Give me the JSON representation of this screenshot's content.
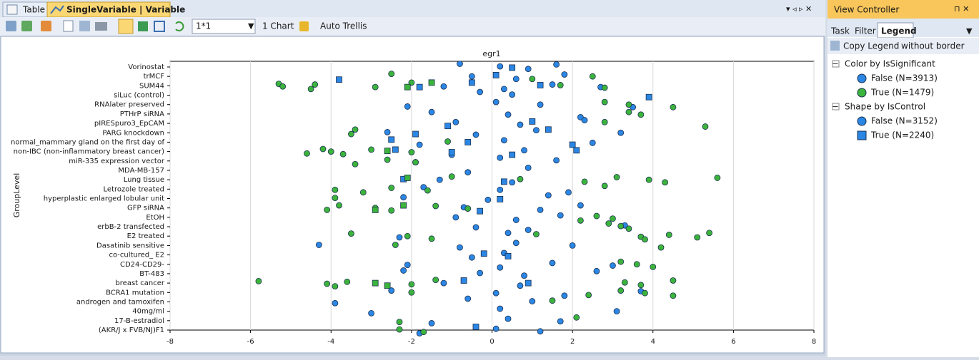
{
  "tabs": [
    "Table",
    "SingleVariable | Variable"
  ],
  "toolbar": {
    "layout": "1*1",
    "charts": "1 Chart",
    "trellis": "Auto Trellis"
  },
  "view_controller": {
    "title": "View Controller",
    "tabs": [
      "Task",
      "Filter",
      "Legend"
    ],
    "copy": "Copy Legend",
    "border": "without border",
    "color_legend": {
      "title": "Color by IsSignificant",
      "items": [
        {
          "label": "False (N=3913)",
          "color": "#2b86e4"
        },
        {
          "label": "True (N=1479)",
          "color": "#3cb43c"
        }
      ]
    },
    "shape_legend": {
      "title": "Shape by IsControl",
      "items": [
        {
          "label": "False (N=3152)",
          "shape": "circle"
        },
        {
          "label": "True (N=2240)",
          "shape": "square"
        }
      ]
    }
  },
  "chart_data": {
    "type": "scatter",
    "title": "egr1",
    "y_label": "GroupLevel",
    "categories": [
      "Vorinostat",
      "trMCF",
      "SUM44",
      "siLuc (control)",
      "RNAlater preserved",
      "PTHrP siRNA",
      "pIRESpuro3_EpCAM",
      "PARG knockdown",
      "normal_mammary gland on the first day of",
      "non-IBC (non-inflammatory breast cancer)",
      "miR-335 expression vector",
      "MDA-MB-157",
      "Lung tissue",
      "Letrozole treated",
      "hyperplastic enlarged lobular unit",
      "GFP siRNA",
      "EtOH",
      "erbB-2 transfected",
      "E2 treated",
      "Dasatinib sensitive",
      "co-cultured_ E2",
      "CD24-CD29-",
      "BT-483",
      "breast cancer",
      "BCRA1 mutation",
      "androgen and tamoxifen",
      "40mg/ml",
      "17-B-estradiol",
      "(AKR/J x FVB/NJ)F1"
    ],
    "xlim": [
      -8,
      8
    ],
    "xticks": [
      -8,
      -6,
      -4,
      -2,
      0,
      2,
      4,
      6,
      8
    ],
    "grid": true,
    "series": [
      {
        "color": "#2b86e4",
        "shape": "circle",
        "x": [
          -0.8,
          0.2,
          0.9,
          1.6,
          -0.5,
          0.6,
          1.8,
          -1.2,
          0.3,
          1.5,
          2.7,
          -0.3,
          0.5,
          -2.1,
          0.1,
          1.2,
          3.5,
          -1.5,
          0.4,
          2.2,
          -0.9,
          0.7,
          2.3,
          -2.6,
          -0.4,
          1.1,
          3.2,
          -1.8,
          0.3,
          2.5,
          -1.0,
          0.8,
          -1.9,
          0.2,
          1.6,
          -0.6,
          0.9,
          -1.3,
          0.5,
          -1.7,
          0.2,
          1.9,
          -2.2,
          -0.1,
          1.4,
          -0.7,
          1.2,
          2.2,
          -0.9,
          0.6,
          1.7,
          -0.4,
          0.9,
          3.3,
          -2.3,
          0.4,
          -4.3,
          -0.8,
          0.6,
          2.0,
          -0.5,
          0.3,
          -2.1,
          0.2,
          1.5,
          3.0,
          -2.2,
          -0.3,
          0.8,
          2.6,
          -1.2,
          0.7,
          -2.5,
          0.1,
          1.8,
          3.7,
          -3.9,
          -0.6,
          1.0,
          -3.0,
          0.2,
          3.1,
          -1.5,
          0.4,
          1.7,
          -1.8,
          0.1,
          1.2
        ],
        "y": [
          "Vorinostat",
          "Vorinostat",
          "Vorinostat",
          "Vorinostat",
          "trMCF",
          "trMCF",
          "trMCF",
          "SUM44",
          "SUM44",
          "SUM44",
          "SUM44",
          "siLuc (control)",
          "siLuc (control)",
          "RNAlater preserved",
          "RNAlater preserved",
          "RNAlater preserved",
          "RNAlater preserved",
          "PTHrP siRNA",
          "PTHrP siRNA",
          "PTHrP siRNA",
          "pIRESpuro3_EpCAM",
          "pIRESpuro3_EpCAM",
          "pIRESpuro3_EpCAM",
          "PARG knockdown",
          "PARG knockdown",
          "PARG knockdown",
          "PARG knockdown",
          "normal_mammary gland on the first day of",
          "normal_mammary gland on the first day of",
          "normal_mammary gland on the first day of",
          "non-IBC (non-inflammatory breast cancer)",
          "non-IBC (non-inflammatory breast cancer)",
          "miR-335 expression vector",
          "miR-335 expression vector",
          "miR-335 expression vector",
          "MDA-MB-157",
          "MDA-MB-157",
          "Lung tissue",
          "Lung tissue",
          "Letrozole treated",
          "Letrozole treated",
          "Letrozole treated",
          "hyperplastic enlarged lobular unit",
          "hyperplastic enlarged lobular unit",
          "hyperplastic enlarged lobular unit",
          "GFP siRNA",
          "GFP siRNA",
          "GFP siRNA",
          "EtOH",
          "EtOH",
          "EtOH",
          "erbB-2 transfected",
          "erbB-2 transfected",
          "erbB-2 transfected",
          "E2 treated",
          "E2 treated",
          "Dasatinib sensitive",
          "Dasatinib sensitive",
          "Dasatinib sensitive",
          "Dasatinib sensitive",
          "co-cultured_ E2",
          "co-cultured_ E2",
          "CD24-CD29-",
          "CD24-CD29-",
          "CD24-CD29-",
          "CD24-CD29-",
          "BT-483",
          "BT-483",
          "BT-483",
          "BT-483",
          "breast cancer",
          "breast cancer",
          "BCRA1 mutation",
          "BCRA1 mutation",
          "BCRA1 mutation",
          "BCRA1 mutation",
          "androgen and tamoxifen",
          "androgen and tamoxifen",
          "androgen and tamoxifen",
          "40mg/ml",
          "40mg/ml",
          "40mg/ml",
          "17-B-estradiol",
          "17-B-estradiol",
          "17-B-estradiol",
          "(AKR/J x FVB/NJ)F1",
          "(AKR/J x FVB/NJ)F1",
          "(AKR/J x FVB/NJ)F1"
        ]
      },
      {
        "color": "#2b86e4",
        "shape": "square",
        "x": [
          0.5,
          -3.8,
          0.1,
          -1.8,
          -0.5,
          1.2,
          3.9,
          -2.5,
          -0.6,
          2.0,
          -2.4,
          -1.0,
          0.5,
          2.1,
          -1.9,
          1.4,
          -2.2,
          0.3,
          -0.7,
          0.9,
          -1.1,
          1.0,
          0.2,
          -0.3,
          -0.2,
          0.4,
          -0.4
        ],
        "y": [
          "Vorinostat",
          "trMCF",
          "trMCF",
          "SUM44",
          "SUM44",
          "SUM44",
          "siLuc (control)",
          "normal_mammary gland on the first day of",
          "normal_mammary gland on the first day of",
          "normal_mammary gland on the first day of",
          "non-IBC (non-inflammatory breast cancer)",
          "non-IBC (non-inflammatory breast cancer)",
          "non-IBC (non-inflammatory breast cancer)",
          "non-IBC (non-inflammatory breast cancer)",
          "PARG knockdown",
          "PARG knockdown",
          "Lung tissue",
          "Lung tissue",
          "breast cancer",
          "breast cancer",
          "pIRESpuro3_EpCAM",
          "pIRESpuro3_EpCAM",
          "hyperplastic enlarged lobular unit",
          "GFP siRNA",
          "co-cultured_ E2",
          "co-cultured_ E2",
          "(AKR/J x FVB/NJ)F1"
        ]
      },
      {
        "color": "#3cb43c",
        "shape": "circle",
        "x": [
          -2.5,
          2.5,
          1.0,
          -5.3,
          -5.2,
          -4.5,
          -4.4,
          -2.9,
          -2.0,
          1.7,
          2.8,
          2.8,
          3.4,
          4.5,
          3.4,
          3.7,
          5.3,
          2.8,
          -3.5,
          -3.4,
          -1.1,
          -4.6,
          -4.2,
          -4.0,
          -3.7,
          -3.0,
          -2.0,
          -3.4,
          -2.6,
          -1.9,
          -1.0,
          0.7,
          2.3,
          3.1,
          3.9,
          4.3,
          5.6,
          -3.9,
          -3.2,
          -2.5,
          -1.6,
          2.8,
          -3.9,
          -4.1,
          -3.8,
          -2.9,
          -2.5,
          -1.4,
          -0.6,
          2.2,
          2.6,
          3.0,
          2.9,
          3.2,
          3.4,
          -3.5,
          -2.1,
          -1.5,
          1.1,
          3.7,
          3.8,
          4.4,
          5.1,
          5.4,
          -2.4,
          4.2,
          3.2,
          3.6,
          4.0,
          -5.8,
          -4.1,
          -3.9,
          -3.6,
          -2.0,
          -1.4,
          3.3,
          3.7,
          4.5,
          -2.0,
          2.4,
          3.2,
          3.8,
          4.5,
          1.5,
          -2.3,
          2.1,
          -2.3,
          -1.7
        ],
        "y": [
          "trMCF",
          "trMCF",
          "trMCF",
          "SUM44",
          "SUM44",
          "SUM44",
          "SUM44",
          "SUM44",
          "SUM44",
          "SUM44",
          "SUM44",
          "RNAlater preserved",
          "RNAlater preserved",
          "RNAlater preserved",
          "PTHrP siRNA",
          "PTHrP siRNA",
          "pIRESpuro3_EpCAM",
          "pIRESpuro3_EpCAM",
          "PARG knockdown",
          "PARG knockdown",
          "normal_mammary gland on the first day of",
          "non-IBC (non-inflammatory breast cancer)",
          "non-IBC (non-inflammatory breast cancer)",
          "non-IBC (non-inflammatory breast cancer)",
          "non-IBC (non-inflammatory breast cancer)",
          "non-IBC (non-inflammatory breast cancer)",
          "non-IBC (non-inflammatory breast cancer)",
          "miR-335 expression vector",
          "miR-335 expression vector",
          "miR-335 expression vector",
          "Lung tissue",
          "Lung tissue",
          "Lung tissue",
          "Lung tissue",
          "Lung tissue",
          "Lung tissue",
          "Lung tissue",
          "Letrozole treated",
          "Letrozole treated",
          "Letrozole treated",
          "Letrozole treated",
          "Letrozole treated",
          "hyperplastic enlarged lobular unit",
          "GFP siRNA",
          "GFP siRNA",
          "GFP siRNA",
          "GFP siRNA",
          "GFP siRNA",
          "GFP siRNA",
          "EtOH",
          "EtOH",
          "EtOH",
          "erbB-2 transfected",
          "erbB-2 transfected",
          "erbB-2 transfected",
          "E2 treated",
          "E2 treated",
          "E2 treated",
          "E2 treated",
          "E2 treated",
          "E2 treated",
          "E2 treated",
          "E2 treated",
          "E2 treated",
          "Dasatinib sensitive",
          "Dasatinib sensitive",
          "CD24-CD29-",
          "CD24-CD29-",
          "CD24-CD29-",
          "breast cancer",
          "breast cancer",
          "breast cancer",
          "breast cancer",
          "breast cancer",
          "breast cancer",
          "breast cancer",
          "breast cancer",
          "breast cancer",
          "BCRA1 mutation",
          "BCRA1 mutation",
          "BCRA1 mutation",
          "BCRA1 mutation",
          "BCRA1 mutation",
          "androgen and tamoxifen",
          "17-B-estradiol",
          "17-B-estradiol",
          "(AKR/J x FVB/NJ)F1",
          "(AKR/J x FVB/NJ)F1"
        ]
      },
      {
        "color": "#3cb43c",
        "shape": "square",
        "x": [
          -2.1,
          -1.5,
          -2.6,
          -2.9,
          -2.2,
          -2.9,
          -2.6,
          -2.1
        ],
        "y": [
          "SUM44",
          "SUM44",
          "non-IBC (non-inflammatory breast cancer)",
          "GFP siRNA",
          "GFP siRNA",
          "breast cancer",
          "breast cancer",
          "Lung tissue"
        ]
      }
    ]
  }
}
